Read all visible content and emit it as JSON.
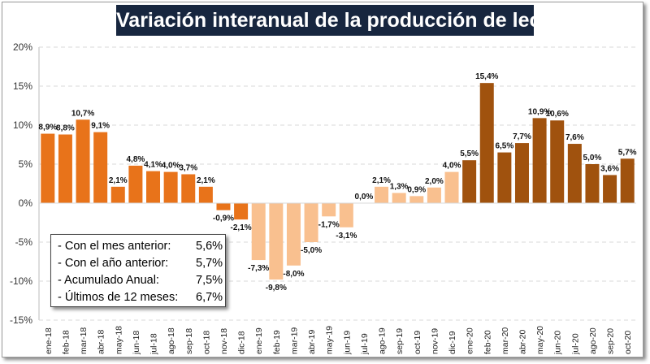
{
  "chart_data": {
    "type": "bar",
    "title": "Variación interanual de la producción de leche",
    "categories": [
      "ene-18",
      "feb-18",
      "mar-18",
      "abr-18",
      "may-18",
      "jun-18",
      "jul-18",
      "ago-18",
      "sep-18",
      "oct-18",
      "nov-18",
      "dic-18",
      "ene-19",
      "feb-19",
      "mar-19",
      "abr-19",
      "may-19",
      "jun-19",
      "jul-19",
      "ago-19",
      "sep-19",
      "oct-19",
      "nov-19",
      "dic-19",
      "ene-20",
      "feb-20",
      "mar-20",
      "abr-20",
      "may-20",
      "jun-20",
      "jul-20",
      "ago-20",
      "sep-20",
      "oct-20"
    ],
    "values": [
      8.9,
      8.8,
      10.7,
      9.1,
      2.1,
      4.8,
      4.1,
      4.0,
      3.7,
      2.1,
      -0.9,
      -2.1,
      -7.3,
      -9.8,
      -8.0,
      -5.0,
      -1.7,
      -3.1,
      0.0,
      2.1,
      1.3,
      0.9,
      2.0,
      4.0,
      5.5,
      15.4,
      6.5,
      7.7,
      10.9,
      10.6,
      7.6,
      5.0,
      3.6,
      5.7
    ],
    "data_labels": [
      "8,9%",
      "8,8%",
      "10,7%",
      "9,1%",
      "2,1%",
      "4,8%",
      "4,1%",
      "4,0%",
      "3,7%",
      "2,1%",
      "-0,9%",
      "-2,1%",
      "-7,3%",
      "-9,8%",
      "-8,0%",
      "-5,0%",
      "-1,7%",
      "-3,1%",
      "0,0%",
      "2,1%",
      "1,3%",
      "0,9%",
      "2,0%",
      "4,0%",
      "5,5%",
      "15,4%",
      "6,5%",
      "7,7%",
      "10,9%",
      "10,6%",
      "7,6%",
      "5,0%",
      "3,6%",
      "5,7%"
    ],
    "ylim": [
      -15,
      20
    ],
    "yticks": [
      "20%",
      "15%",
      "10%",
      "5%",
      "0%",
      "-5%",
      "-10%",
      "-15%"
    ],
    "ytick_values": [
      20,
      15,
      10,
      5,
      0,
      -5,
      -10,
      -15
    ],
    "grid": true,
    "xlabel": "",
    "ylabel": "",
    "colors": {
      "2018": "#e8731a",
      "2019": "#f9c08f",
      "2020": "#a0520e"
    }
  },
  "legend_box": {
    "rows": [
      {
        "label": "- Con el mes anterior:",
        "value": "5,6%"
      },
      {
        "label": "- Con el año anterior:",
        "value": "5,7%"
      },
      {
        "label": "- Acumulado Anual:",
        "value": "7,5%"
      },
      {
        "label": "- Últimos de 12 meses:",
        "value": "6,7%"
      }
    ]
  }
}
